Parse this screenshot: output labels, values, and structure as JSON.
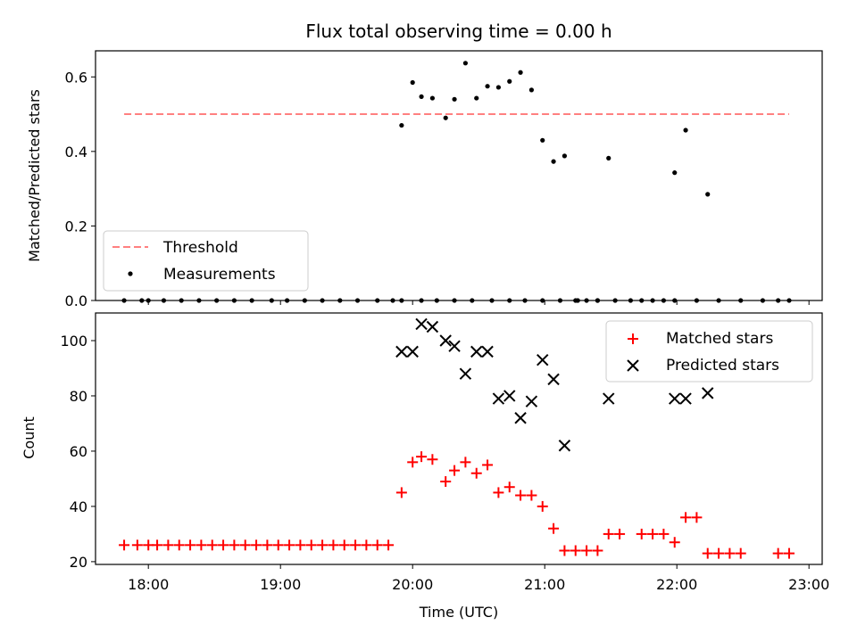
{
  "chart_data": [
    {
      "type": "scatter",
      "title": "Flux total observing time = 0.00 h",
      "xlabel": "",
      "ylabel": "Matched/Predicted stars",
      "xlim": [
        "17:36",
        "23:06"
      ],
      "ylim": [
        0,
        0.67
      ],
      "yticks": [
        "0.0",
        "0.2",
        "0.4",
        "0.6"
      ],
      "grid": false,
      "legend_position": "lower-left",
      "series": [
        {
          "name": "Threshold",
          "style": "dashed-line",
          "color": "#ff8080",
          "points": [
            [
              "17:49",
              0.5
            ],
            [
              "22:51",
              0.5
            ]
          ]
        },
        {
          "name": "Measurements",
          "style": "dot",
          "color": "#000000",
          "points": [
            [
              "17:49",
              0.0
            ],
            [
              "17:57",
              0.0
            ],
            [
              "18:00",
              0.0
            ],
            [
              "18:07",
              0.0
            ],
            [
              "18:15",
              0.0
            ],
            [
              "18:23",
              0.0
            ],
            [
              "18:31",
              0.0
            ],
            [
              "18:39",
              0.0
            ],
            [
              "18:47",
              0.0
            ],
            [
              "18:56",
              0.0
            ],
            [
              "19:03",
              0.0
            ],
            [
              "19:11",
              0.0
            ],
            [
              "19:19",
              0.0
            ],
            [
              "19:27",
              0.0
            ],
            [
              "19:35",
              0.0
            ],
            [
              "19:44",
              0.0
            ],
            [
              "19:51",
              0.0
            ],
            [
              "19:55",
              0.0
            ],
            [
              "20:04",
              0.0
            ],
            [
              "20:11",
              0.0
            ],
            [
              "20:19",
              0.0
            ],
            [
              "20:27",
              0.0
            ],
            [
              "20:36",
              0.0
            ],
            [
              "20:44",
              0.0
            ],
            [
              "20:51",
              0.0
            ],
            [
              "20:59",
              0.0
            ],
            [
              "21:07",
              0.0
            ],
            [
              "21:15",
              0.0
            ],
            [
              "21:24",
              0.0
            ],
            [
              "21:32",
              0.0
            ],
            [
              "19:55",
              0.47
            ],
            [
              "20:00",
              0.585
            ],
            [
              "20:04",
              0.547
            ],
            [
              "20:09",
              0.543
            ],
            [
              "20:15",
              0.49
            ],
            [
              "20:19",
              0.54
            ],
            [
              "20:24",
              0.637
            ],
            [
              "20:29",
              0.543
            ],
            [
              "20:34",
              0.575
            ],
            [
              "20:39",
              0.572
            ],
            [
              "20:44",
              0.588
            ],
            [
              "20:49",
              0.612
            ],
            [
              "20:54",
              0.565
            ],
            [
              "20:59",
              0.43
            ],
            [
              "21:04",
              0.373
            ],
            [
              "21:09",
              0.388
            ],
            [
              "21:29",
              0.382
            ],
            [
              "21:59",
              0.343
            ],
            [
              "22:04",
              0.457
            ],
            [
              "22:14",
              0.285
            ],
            [
              "21:14",
              0.0
            ],
            [
              "21:19",
              0.0
            ],
            [
              "21:24",
              0.0
            ],
            [
              "21:39",
              0.0
            ],
            [
              "21:44",
              0.0
            ],
            [
              "21:49",
              0.0
            ],
            [
              "21:54",
              0.0
            ],
            [
              "21:59",
              0.0
            ],
            [
              "22:09",
              0.0
            ],
            [
              "22:19",
              0.0
            ],
            [
              "22:29",
              0.0
            ],
            [
              "22:39",
              0.0
            ],
            [
              "22:46",
              0.0
            ],
            [
              "22:51",
              0.0
            ]
          ]
        }
      ]
    },
    {
      "type": "scatter",
      "title": "",
      "xlabel": "Time (UTC)",
      "ylabel": "Count",
      "xlim": [
        "17:36",
        "23:06"
      ],
      "xticks": [
        "18:00",
        "19:00",
        "20:00",
        "21:00",
        "22:00",
        "23:00"
      ],
      "ylim": [
        19,
        110
      ],
      "yticks": [
        "20",
        "40",
        "60",
        "80",
        "100"
      ],
      "grid": false,
      "legend_position": "upper-right",
      "series": [
        {
          "name": "Matched stars",
          "style": "plus",
          "color": "#ff0000",
          "points": [
            [
              "17:49",
              26
            ],
            [
              "17:55",
              26
            ],
            [
              "18:00",
              26
            ],
            [
              "18:04",
              26
            ],
            [
              "18:09",
              26
            ],
            [
              "18:14",
              26
            ],
            [
              "18:19",
              26
            ],
            [
              "18:24",
              26
            ],
            [
              "18:29",
              26
            ],
            [
              "18:34",
              26
            ],
            [
              "18:39",
              26
            ],
            [
              "18:44",
              26
            ],
            [
              "18:49",
              26
            ],
            [
              "18:54",
              26
            ],
            [
              "18:59",
              26
            ],
            [
              "19:04",
              26
            ],
            [
              "19:09",
              26
            ],
            [
              "19:14",
              26
            ],
            [
              "19:19",
              26
            ],
            [
              "19:24",
              26
            ],
            [
              "19:29",
              26
            ],
            [
              "19:34",
              26
            ],
            [
              "19:39",
              26
            ],
            [
              "19:44",
              26
            ],
            [
              "19:49",
              26
            ],
            [
              "19:55",
              45
            ],
            [
              "20:00",
              56
            ],
            [
              "20:04",
              58
            ],
            [
              "20:09",
              57
            ],
            [
              "20:15",
              49
            ],
            [
              "20:19",
              53
            ],
            [
              "20:24",
              56
            ],
            [
              "20:29",
              52
            ],
            [
              "20:34",
              55
            ],
            [
              "20:39",
              45
            ],
            [
              "20:44",
              47
            ],
            [
              "20:49",
              44
            ],
            [
              "20:54",
              44
            ],
            [
              "20:59",
              40
            ],
            [
              "21:04",
              32
            ],
            [
              "21:09",
              24
            ],
            [
              "21:14",
              24
            ],
            [
              "21:19",
              24
            ],
            [
              "21:24",
              24
            ],
            [
              "21:29",
              30
            ],
            [
              "21:34",
              30
            ],
            [
              "21:44",
              30
            ],
            [
              "21:49",
              30
            ],
            [
              "21:54",
              30
            ],
            [
              "21:59",
              27
            ],
            [
              "22:04",
              36
            ],
            [
              "22:09",
              36
            ],
            [
              "22:14",
              23
            ],
            [
              "22:19",
              23
            ],
            [
              "22:24",
              23
            ],
            [
              "22:29",
              23
            ],
            [
              "22:46",
              23
            ],
            [
              "22:51",
              23
            ]
          ]
        },
        {
          "name": "Predicted stars",
          "style": "cross",
          "color": "#000000",
          "points": [
            [
              "19:55",
              96
            ],
            [
              "20:00",
              96
            ],
            [
              "20:04",
              106
            ],
            [
              "20:09",
              105
            ],
            [
              "20:15",
              100
            ],
            [
              "20:19",
              98
            ],
            [
              "20:24",
              88
            ],
            [
              "20:29",
              96
            ],
            [
              "20:34",
              96
            ],
            [
              "20:39",
              79
            ],
            [
              "20:44",
              80
            ],
            [
              "20:49",
              72
            ],
            [
              "20:54",
              78
            ],
            [
              "20:59",
              93
            ],
            [
              "21:04",
              86
            ],
            [
              "21:09",
              62
            ],
            [
              "21:29",
              79
            ],
            [
              "21:59",
              79
            ],
            [
              "22:04",
              79
            ],
            [
              "22:14",
              81
            ]
          ]
        }
      ]
    }
  ]
}
